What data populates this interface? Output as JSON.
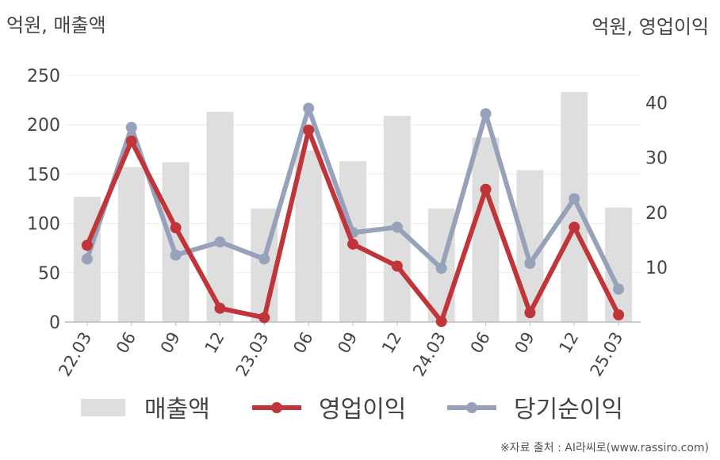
{
  "unit_left": "억원, 매출액",
  "unit_right": "억원, 영업이익",
  "source": "※자료 출처 : AI라씨로(www.rassiro.com)",
  "chart_data": {
    "type": "bar",
    "categories": [
      "22.03",
      "06",
      "09",
      "12",
      "23.03",
      "06",
      "09",
      "12",
      "24.03",
      "06",
      "09",
      "12",
      "25.03"
    ],
    "y_left": {
      "ylim": [
        0,
        250
      ],
      "ticks": [
        0,
        50,
        100,
        150,
        200,
        250
      ]
    },
    "y_right": {
      "ylim": [
        0,
        45
      ],
      "ticks": [
        10,
        20,
        30,
        40
      ]
    },
    "grid": true,
    "legend_position": "bottom",
    "series": [
      {
        "name": "매출액",
        "type": "bar",
        "axis": "left",
        "color": "#dedede",
        "values": [
          127,
          157,
          162,
          213,
          115,
          174,
          163,
          209,
          115,
          187,
          154,
          233,
          116
        ]
      },
      {
        "name": "영업이익",
        "type": "line",
        "axis": "right",
        "color": "#c0353a",
        "values": [
          14,
          33,
          17.2,
          2.5,
          0.8,
          35,
          14.2,
          10.2,
          0.1,
          24.2,
          1.7,
          17.3,
          1.3
        ]
      },
      {
        "name": "당기순이익",
        "type": "line",
        "axis": "right",
        "color": "#96a1ba",
        "values": [
          11.5,
          35.5,
          12.2,
          14.6,
          11.5,
          39,
          16.3,
          17.3,
          9.8,
          38,
          10.7,
          22.5,
          6
        ]
      }
    ]
  }
}
